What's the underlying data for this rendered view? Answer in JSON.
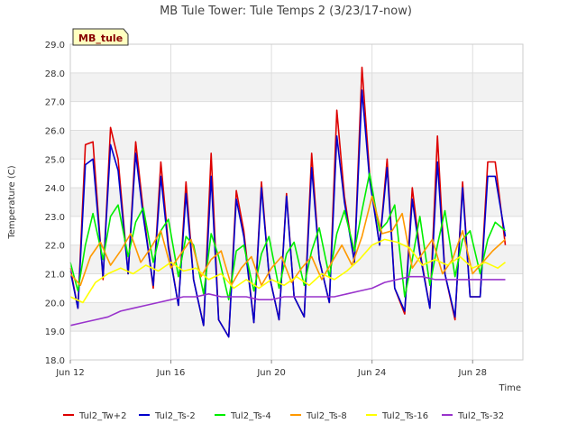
{
  "chart_data": {
    "type": "line",
    "title": "MB Tule Tower: Tule Temps 2 (3/23/17-now)",
    "xlabel": "Time",
    "ylabel": "Temperature (C)",
    "site_label": "MB_tule",
    "xlim": [
      12.0,
      30.0
    ],
    "ylim": [
      18.0,
      29.0
    ],
    "x_ticks": [
      {
        "value": 12,
        "label": "Jun 12"
      },
      {
        "value": 16,
        "label": "Jun 16"
      },
      {
        "value": 20,
        "label": "Jun 20"
      },
      {
        "value": 24,
        "label": "Jun 24"
      },
      {
        "value": 28,
        "label": "Jun 28"
      }
    ],
    "y_ticks": [
      18.0,
      19.0,
      20.0,
      21.0,
      22.0,
      23.0,
      24.0,
      25.0,
      26.0,
      27.0,
      28.0,
      29.0
    ],
    "grid": true,
    "legend_position": "bottom",
    "series": [
      {
        "name": "Tul2_Tw+2",
        "color": "#dd0000",
        "x": [
          12.0,
          12.3,
          12.6,
          12.9,
          13.3,
          13.6,
          13.9,
          14.3,
          14.6,
          14.9,
          15.3,
          15.6,
          15.9,
          16.3,
          16.6,
          16.9,
          17.3,
          17.6,
          17.9,
          18.3,
          18.6,
          18.9,
          19.3,
          19.6,
          19.9,
          20.3,
          20.6,
          20.9,
          21.3,
          21.6,
          21.9,
          22.3,
          22.6,
          22.9,
          23.3,
          23.6,
          23.9,
          24.3,
          24.6,
          24.9,
          25.3,
          25.6,
          25.9,
          26.3,
          26.6,
          26.9,
          27.3,
          27.6,
          27.9,
          28.3,
          28.6,
          28.9,
          29.3
        ],
        "y": [
          21.2,
          19.8,
          25.5,
          25.6,
          20.8,
          26.1,
          25.0,
          21.0,
          25.6,
          23.2,
          20.5,
          24.9,
          22.0,
          19.9,
          24.2,
          20.8,
          19.2,
          25.2,
          19.4,
          18.8,
          23.9,
          22.5,
          19.3,
          24.2,
          21.0,
          19.4,
          23.8,
          20.2,
          19.5,
          25.2,
          21.5,
          20.0,
          26.7,
          23.7,
          21.4,
          28.2,
          24.5,
          22.0,
          25.0,
          20.5,
          19.6,
          24.0,
          21.8,
          19.8,
          25.8,
          21.0,
          19.4,
          24.2,
          20.2,
          20.2,
          24.9,
          24.9,
          22.0
        ]
      },
      {
        "name": "Tul2_Ts-2",
        "color": "#0000cc",
        "x": [
          12.0,
          12.3,
          12.6,
          12.9,
          13.3,
          13.6,
          13.9,
          14.3,
          14.6,
          14.9,
          15.3,
          15.6,
          15.9,
          16.3,
          16.6,
          16.9,
          17.3,
          17.6,
          17.9,
          18.3,
          18.6,
          18.9,
          19.3,
          19.6,
          19.9,
          20.3,
          20.6,
          20.9,
          21.3,
          21.6,
          21.9,
          22.3,
          22.6,
          22.9,
          23.3,
          23.6,
          23.9,
          24.3,
          24.6,
          24.9,
          25.3,
          25.6,
          25.9,
          26.3,
          26.6,
          26.9,
          27.3,
          27.6,
          27.9,
          28.3,
          28.6,
          28.9,
          29.3
        ],
        "y": [
          21.1,
          19.8,
          24.8,
          25.0,
          20.9,
          25.5,
          24.6,
          21.0,
          25.2,
          23.0,
          20.6,
          24.4,
          21.9,
          19.9,
          23.8,
          20.8,
          19.2,
          24.4,
          19.4,
          18.8,
          23.6,
          22.3,
          19.3,
          24.0,
          21.0,
          19.4,
          23.7,
          20.2,
          19.5,
          24.7,
          21.5,
          20.0,
          25.8,
          23.5,
          21.4,
          27.4,
          24.3,
          22.0,
          24.7,
          20.5,
          19.7,
          23.6,
          21.7,
          19.8,
          24.9,
          21.0,
          19.5,
          24.0,
          20.2,
          20.2,
          24.4,
          24.4,
          22.3
        ]
      },
      {
        "name": "Tul2_Ts-4",
        "color": "#00ee00",
        "x": [
          12.0,
          12.3,
          12.6,
          12.9,
          13.3,
          13.6,
          13.9,
          14.3,
          14.6,
          14.9,
          15.3,
          15.6,
          15.9,
          16.3,
          16.6,
          16.9,
          17.3,
          17.6,
          17.9,
          18.3,
          18.6,
          18.9,
          19.3,
          19.6,
          19.9,
          20.3,
          20.6,
          20.9,
          21.3,
          21.6,
          21.9,
          22.3,
          22.6,
          22.9,
          23.3,
          23.6,
          23.9,
          24.3,
          24.6,
          24.9,
          25.3,
          25.6,
          25.9,
          26.3,
          26.6,
          26.9,
          27.3,
          27.6,
          27.9,
          28.3,
          28.6,
          28.9,
          29.3
        ],
        "y": [
          21.4,
          20.4,
          22.0,
          23.1,
          21.5,
          23.0,
          23.4,
          21.6,
          22.8,
          23.3,
          21.4,
          22.5,
          22.9,
          20.9,
          22.3,
          22.0,
          20.3,
          22.4,
          21.6,
          20.1,
          21.8,
          22.0,
          20.4,
          21.7,
          22.3,
          20.5,
          21.7,
          22.1,
          20.6,
          21.8,
          22.6,
          20.9,
          22.4,
          23.2,
          21.8,
          23.2,
          24.5,
          22.5,
          22.8,
          23.4,
          20.2,
          21.5,
          23.0,
          20.6,
          22.0,
          23.2,
          20.9,
          22.2,
          22.5,
          21.0,
          22.2,
          22.8,
          22.5
        ]
      },
      {
        "name": "Tul2_Ts-8",
        "color": "#ff9900",
        "x": [
          12.0,
          12.4,
          12.8,
          13.2,
          13.6,
          14.0,
          14.4,
          14.8,
          15.2,
          15.6,
          16.0,
          16.4,
          16.8,
          17.2,
          17.6,
          18.0,
          18.4,
          18.8,
          19.2,
          19.6,
          20.0,
          20.4,
          20.8,
          21.2,
          21.6,
          22.0,
          22.4,
          22.8,
          23.2,
          23.6,
          24.0,
          24.4,
          24.8,
          25.2,
          25.6,
          26.0,
          26.4,
          26.8,
          27.2,
          27.6,
          28.0,
          28.4,
          28.8,
          29.3
        ],
        "y": [
          21.0,
          20.6,
          21.6,
          22.1,
          21.3,
          21.8,
          22.4,
          21.4,
          21.9,
          22.5,
          21.2,
          21.7,
          22.2,
          20.9,
          21.5,
          21.8,
          20.6,
          21.2,
          21.6,
          20.6,
          21.2,
          21.6,
          20.7,
          21.2,
          21.6,
          20.8,
          21.4,
          22.0,
          21.3,
          22.3,
          23.7,
          22.4,
          22.5,
          23.1,
          21.2,
          21.7,
          22.2,
          21.0,
          21.5,
          22.5,
          21.0,
          21.4,
          21.8,
          22.2
        ]
      },
      {
        "name": "Tul2_Ts-16",
        "color": "#ffff00",
        "x": [
          12.0,
          12.5,
          13.0,
          13.5,
          14.0,
          14.5,
          15.0,
          15.5,
          16.0,
          16.5,
          17.0,
          17.5,
          18.0,
          18.5,
          19.0,
          19.5,
          20.0,
          20.5,
          21.0,
          21.5,
          22.0,
          22.5,
          23.0,
          23.5,
          24.0,
          24.5,
          25.0,
          25.5,
          26.0,
          26.5,
          27.0,
          27.5,
          28.0,
          28.5,
          29.0,
          29.3
        ],
        "y": [
          20.2,
          20.0,
          20.7,
          21.0,
          21.2,
          21.0,
          21.3,
          21.1,
          21.4,
          21.1,
          21.2,
          20.8,
          21.0,
          20.5,
          20.8,
          20.5,
          20.8,
          20.6,
          20.9,
          20.6,
          21.0,
          20.8,
          21.1,
          21.5,
          22.0,
          22.2,
          22.1,
          21.9,
          21.3,
          21.5,
          21.3,
          21.6,
          21.2,
          21.4,
          21.2,
          21.4
        ]
      },
      {
        "name": "Tul2_Ts-32",
        "color": "#9933cc",
        "x": [
          12.0,
          12.5,
          13.0,
          13.5,
          14.0,
          14.5,
          15.0,
          15.5,
          16.0,
          16.5,
          17.0,
          17.5,
          18.0,
          18.5,
          19.0,
          19.5,
          20.0,
          20.5,
          21.0,
          21.5,
          22.0,
          22.5,
          23.0,
          23.5,
          24.0,
          24.5,
          25.0,
          25.5,
          26.0,
          26.5,
          27.0,
          27.5,
          28.0,
          28.5,
          29.0,
          29.3
        ],
        "y": [
          19.2,
          19.3,
          19.4,
          19.5,
          19.7,
          19.8,
          19.9,
          20.0,
          20.1,
          20.2,
          20.2,
          20.3,
          20.2,
          20.2,
          20.2,
          20.1,
          20.1,
          20.2,
          20.2,
          20.2,
          20.2,
          20.2,
          20.3,
          20.4,
          20.5,
          20.7,
          20.8,
          20.9,
          20.9,
          20.8,
          20.8,
          20.8,
          20.8,
          20.8,
          20.8,
          20.8
        ]
      }
    ]
  }
}
